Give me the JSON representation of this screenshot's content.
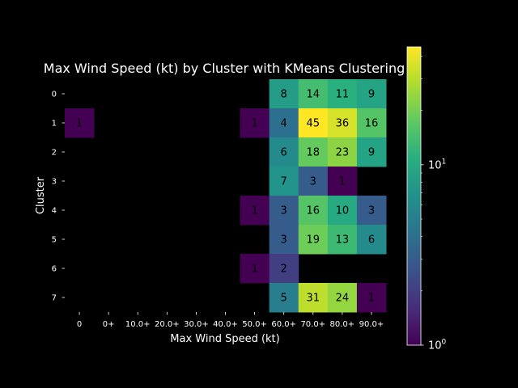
{
  "chart_data": {
    "type": "heatmap",
    "title": "Max Wind Speed (kt) by Cluster with KMeans Clustering",
    "xlabel": "Max Wind Speed (kt)",
    "ylabel": "Cluster",
    "x_categories": [
      "0",
      "0+",
      "10.0+",
      "20.0+",
      "30.0+",
      "40.0+",
      "50.0+",
      "60.0+",
      "70.0+",
      "80.0+",
      "90.0+"
    ],
    "y_categories": [
      "0",
      "1",
      "2",
      "3",
      "4",
      "5",
      "6",
      "7"
    ],
    "values": [
      [
        null,
        null,
        null,
        null,
        null,
        null,
        null,
        8,
        14,
        11,
        9
      ],
      [
        1,
        null,
        null,
        null,
        null,
        null,
        1,
        4,
        45,
        36,
        16
      ],
      [
        null,
        null,
        null,
        null,
        null,
        null,
        null,
        6,
        18,
        23,
        9
      ],
      [
        null,
        null,
        null,
        null,
        null,
        null,
        null,
        7,
        3,
        1,
        null
      ],
      [
        null,
        null,
        null,
        null,
        null,
        null,
        1,
        3,
        16,
        10,
        3
      ],
      [
        null,
        null,
        null,
        null,
        null,
        null,
        null,
        3,
        19,
        13,
        6
      ],
      [
        null,
        null,
        null,
        null,
        null,
        null,
        1,
        2,
        null,
        null,
        null
      ],
      [
        null,
        null,
        null,
        null,
        null,
        null,
        null,
        5,
        31,
        24,
        1
      ]
    ],
    "colormap": "viridis",
    "color_scale": "log",
    "color_range": [
      1,
      45
    ],
    "colorbar_ticks": [
      {
        "base": "10",
        "exp": "0",
        "value": 1
      },
      {
        "base": "10",
        "exp": "1",
        "value": 10
      }
    ],
    "background": "#000000",
    "grid": false,
    "colorbar_position": "right"
  }
}
